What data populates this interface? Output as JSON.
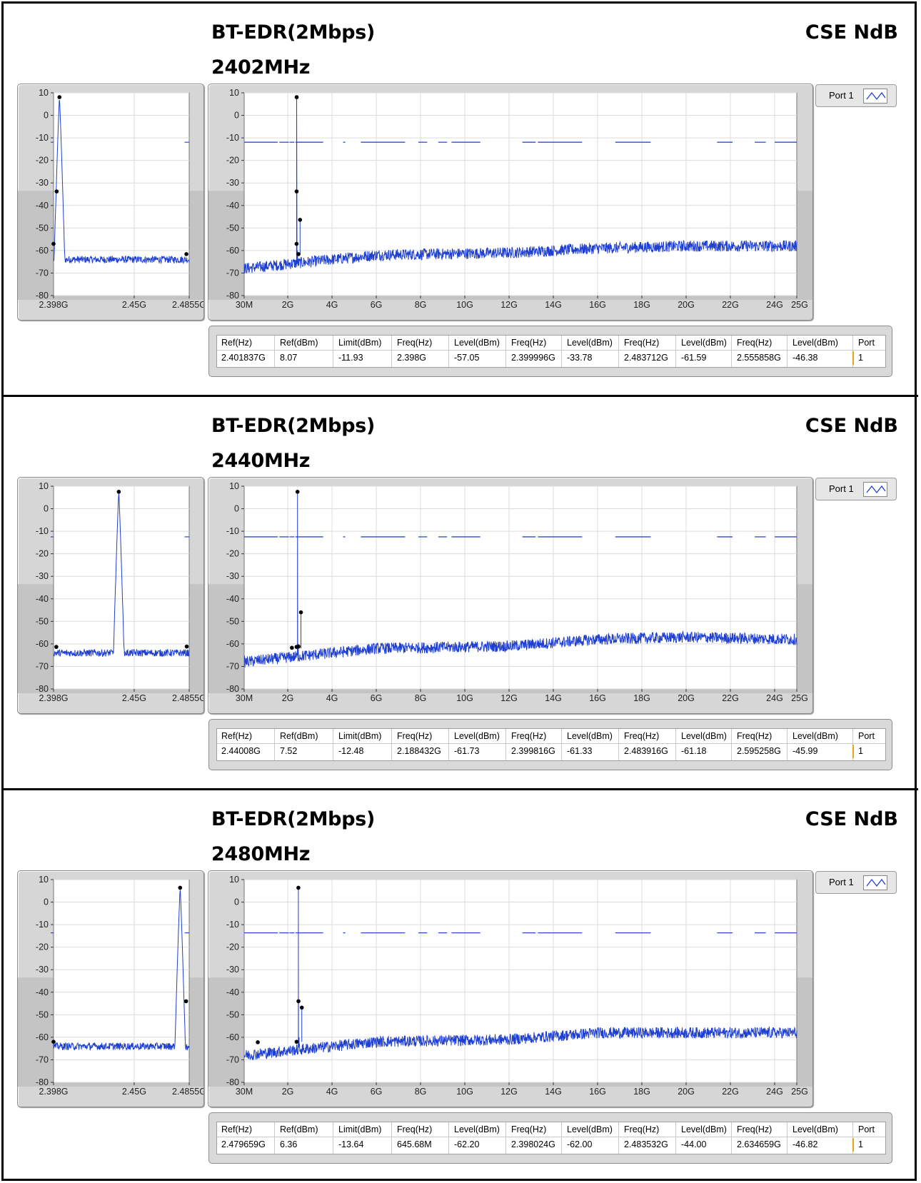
{
  "sections": [
    {
      "title": "BT-EDR(2Mbps)",
      "freq": "2402MHz",
      "label_right": "CSE NdB",
      "legend": "Port 1",
      "table": {
        "headers": [
          "Ref(Hz)",
          "Ref(dBm)",
          "Limit(dBm)",
          "Freq(Hz)",
          "Level(dBm)",
          "Freq(Hz)",
          "Level(dBm)",
          "Freq(Hz)",
          "Level(dBm)",
          "Freq(Hz)",
          "Level(dBm)",
          "Port"
        ],
        "values": [
          "2.401837G",
          "8.07",
          "-11.93",
          "2.398G",
          "-57.05",
          "2.399996G",
          "-33.78",
          "2.483712G",
          "-61.59",
          "2.555858G",
          "-46.38",
          "1"
        ]
      }
    },
    {
      "title": "BT-EDR(2Mbps)",
      "freq": "2440MHz",
      "label_right": "CSE NdB",
      "legend": "Port 1",
      "table": {
        "headers": [
          "Ref(Hz)",
          "Ref(dBm)",
          "Limit(dBm)",
          "Freq(Hz)",
          "Level(dBm)",
          "Freq(Hz)",
          "Level(dBm)",
          "Freq(Hz)",
          "Level(dBm)",
          "Freq(Hz)",
          "Level(dBm)",
          "Port"
        ],
        "values": [
          "2.44008G",
          "7.52",
          "-12.48",
          "2.188432G",
          "-61.73",
          "2.399816G",
          "-61.33",
          "2.483916G",
          "-61.18",
          "2.595258G",
          "-45.99",
          "1"
        ]
      }
    },
    {
      "title": "BT-EDR(2Mbps)",
      "freq": "2480MHz",
      "label_right": "CSE NdB",
      "legend": "Port 1",
      "table": {
        "headers": [
          "Ref(Hz)",
          "Ref(dBm)",
          "Limit(dBm)",
          "Freq(Hz)",
          "Level(dBm)",
          "Freq(Hz)",
          "Level(dBm)",
          "Freq(Hz)",
          "Level(dBm)",
          "Freq(Hz)",
          "Level(dBm)",
          "Port"
        ],
        "values": [
          "2.479659G",
          "6.36",
          "-13.64",
          "645.68M",
          "-62.20",
          "2.398024G",
          "-62.00",
          "2.483532G",
          "-44.00",
          "2.634659G",
          "-46.82",
          "1"
        ]
      }
    }
  ],
  "colors": {
    "trace": "#1f3fd1",
    "limit": "#2a4ad8",
    "marker": "#000000"
  },
  "chart_data": [
    {
      "type": "line",
      "title": "",
      "xlabel": "",
      "ylabel": "",
      "ylim": [
        -80,
        10
      ],
      "yticks": [
        "10",
        "0",
        "-10",
        "-20",
        "-30",
        "-40",
        "-50",
        "-60",
        "-70",
        "-80"
      ],
      "xlim": [
        2.398,
        2.4855
      ],
      "xticks": [
        {
          "v": 2.398,
          "label": "2.398G"
        },
        {
          "v": 2.45,
          "label": "2.45G"
        },
        {
          "v": 2.4855,
          "label": "2.4855G"
        }
      ],
      "peak_freq": 2.4018,
      "peak_level": 8.07,
      "floor_level": -64,
      "limit": -11.93,
      "limit_visible_from": 2.4825,
      "markers": [
        [
          2.4018,
          8.07
        ],
        [
          2.398,
          -57.05
        ],
        [
          2.4,
          -33.78
        ],
        [
          2.4837,
          -61.59
        ]
      ]
    },
    {
      "type": "line",
      "title": "",
      "xlabel": "",
      "ylabel": "",
      "ylim": [
        -80,
        10
      ],
      "yticks": [
        "10",
        "0",
        "-10",
        "-20",
        "-30",
        "-40",
        "-50",
        "-60",
        "-70",
        "-80"
      ],
      "xlim": [
        0.03,
        25
      ],
      "xticks": [
        {
          "v": 0.03,
          "label": "30M"
        },
        {
          "v": 2,
          "label": "2G"
        },
        {
          "v": 4,
          "label": "4G"
        },
        {
          "v": 6,
          "label": "6G"
        },
        {
          "v": 8,
          "label": "8G"
        },
        {
          "v": 10,
          "label": "10G"
        },
        {
          "v": 12,
          "label": "12G"
        },
        {
          "v": 14,
          "label": "14G"
        },
        {
          "v": 16,
          "label": "16G"
        },
        {
          "v": 18,
          "label": "18G"
        },
        {
          "v": 20,
          "label": "20G"
        },
        {
          "v": 22,
          "label": "22G"
        },
        {
          "v": 24,
          "label": "24G"
        },
        {
          "v": 25,
          "label": "25G"
        }
      ],
      "peak_freq": 2.4018,
      "peak_level": 8.07,
      "floor": [
        [
          0.03,
          -68
        ],
        [
          2,
          -66
        ],
        [
          6,
          -62
        ],
        [
          12,
          -61
        ],
        [
          16,
          -59
        ],
        [
          20,
          -58
        ],
        [
          25,
          -58
        ]
      ],
      "limit": -11.93,
      "markers": [
        [
          2.4018,
          8.07
        ],
        [
          2.398,
          -57.05
        ],
        [
          2.4,
          -33.78
        ],
        [
          2.4837,
          -61.59
        ],
        [
          2.5559,
          -46.38
        ]
      ]
    },
    {
      "type": "line",
      "title": "",
      "xlabel": "",
      "ylabel": "",
      "ylim": [
        -80,
        10
      ],
      "yticks": [
        "10",
        "0",
        "-10",
        "-20",
        "-30",
        "-40",
        "-50",
        "-60",
        "-70",
        "-80"
      ],
      "xlim": [
        2.398,
        2.4855
      ],
      "xticks": [
        {
          "v": 2.398,
          "label": "2.398G"
        },
        {
          "v": 2.45,
          "label": "2.45G"
        },
        {
          "v": 2.4855,
          "label": "2.4855G"
        }
      ],
      "peak_freq": 2.44008,
      "peak_level": 7.52,
      "floor_level": -64,
      "limit": -12.48,
      "limit_visible_from": 2.4825,
      "markers": [
        [
          2.44008,
          7.52
        ],
        [
          2.3998,
          -61.33
        ],
        [
          2.4839,
          -61.18
        ]
      ]
    },
    {
      "type": "line",
      "title": "",
      "xlabel": "",
      "ylabel": "",
      "ylim": [
        -80,
        10
      ],
      "yticks": [
        "10",
        "0",
        "-10",
        "-20",
        "-30",
        "-40",
        "-50",
        "-60",
        "-70",
        "-80"
      ],
      "xlim": [
        0.03,
        25
      ],
      "xticks": [
        {
          "v": 0.03,
          "label": "30M"
        },
        {
          "v": 2,
          "label": "2G"
        },
        {
          "v": 4,
          "label": "4G"
        },
        {
          "v": 6,
          "label": "6G"
        },
        {
          "v": 8,
          "label": "8G"
        },
        {
          "v": 10,
          "label": "10G"
        },
        {
          "v": 12,
          "label": "12G"
        },
        {
          "v": 14,
          "label": "14G"
        },
        {
          "v": 16,
          "label": "16G"
        },
        {
          "v": 18,
          "label": "18G"
        },
        {
          "v": 20,
          "label": "20G"
        },
        {
          "v": 22,
          "label": "22G"
        },
        {
          "v": 24,
          "label": "24G"
        },
        {
          "v": 25,
          "label": "25G"
        }
      ],
      "peak_freq": 2.44008,
      "peak_level": 7.52,
      "floor": [
        [
          0.03,
          -68
        ],
        [
          2,
          -66
        ],
        [
          6,
          -62
        ],
        [
          12,
          -61
        ],
        [
          16,
          -58
        ],
        [
          20,
          -57
        ],
        [
          25,
          -58
        ]
      ],
      "limit": -12.48,
      "markers": [
        [
          2.44008,
          7.52
        ],
        [
          2.1884,
          -61.73
        ],
        [
          2.3998,
          -61.33
        ],
        [
          2.4839,
          -61.18
        ],
        [
          2.5953,
          -45.99
        ]
      ]
    },
    {
      "type": "line",
      "title": "",
      "xlabel": "",
      "ylabel": "",
      "ylim": [
        -80,
        10
      ],
      "yticks": [
        "10",
        "0",
        "-10",
        "-20",
        "-30",
        "-40",
        "-50",
        "-60",
        "-70",
        "-80"
      ],
      "xlim": [
        2.398,
        2.4855
      ],
      "xticks": [
        {
          "v": 2.398,
          "label": "2.398G"
        },
        {
          "v": 2.45,
          "label": "2.45G"
        },
        {
          "v": 2.4855,
          "label": "2.4855G"
        }
      ],
      "peak_freq": 2.479659,
      "peak_level": 6.36,
      "floor_level": -64,
      "limit": -13.64,
      "limit_visible_from": 2.4825,
      "markers": [
        [
          2.479659,
          6.36
        ],
        [
          2.398,
          -62.0
        ],
        [
          2.4835,
          -44.0
        ]
      ]
    },
    {
      "type": "line",
      "title": "",
      "xlabel": "",
      "ylabel": "",
      "ylim": [
        -80,
        10
      ],
      "yticks": [
        "10",
        "0",
        "-10",
        "-20",
        "-30",
        "-40",
        "-50",
        "-60",
        "-70",
        "-80"
      ],
      "xlim": [
        0.03,
        25
      ],
      "xticks": [
        {
          "v": 0.03,
          "label": "30M"
        },
        {
          "v": 2,
          "label": "2G"
        },
        {
          "v": 4,
          "label": "4G"
        },
        {
          "v": 6,
          "label": "6G"
        },
        {
          "v": 8,
          "label": "8G"
        },
        {
          "v": 10,
          "label": "10G"
        },
        {
          "v": 12,
          "label": "12G"
        },
        {
          "v": 14,
          "label": "14G"
        },
        {
          "v": 16,
          "label": "16G"
        },
        {
          "v": 18,
          "label": "18G"
        },
        {
          "v": 20,
          "label": "20G"
        },
        {
          "v": 22,
          "label": "22G"
        },
        {
          "v": 24,
          "label": "24G"
        },
        {
          "v": 25,
          "label": "25G"
        }
      ],
      "peak_freq": 2.479659,
      "peak_level": 6.36,
      "floor": [
        [
          0.03,
          -68
        ],
        [
          2,
          -66
        ],
        [
          6,
          -62
        ],
        [
          12,
          -61
        ],
        [
          16,
          -58
        ],
        [
          20,
          -58
        ],
        [
          25,
          -58
        ]
      ],
      "limit": -13.64,
      "markers": [
        [
          2.479659,
          6.36
        ],
        [
          0.64568,
          -62.2
        ],
        [
          2.398,
          -62.0
        ],
        [
          2.4835,
          -44.0
        ],
        [
          2.6347,
          -46.82
        ]
      ]
    }
  ]
}
